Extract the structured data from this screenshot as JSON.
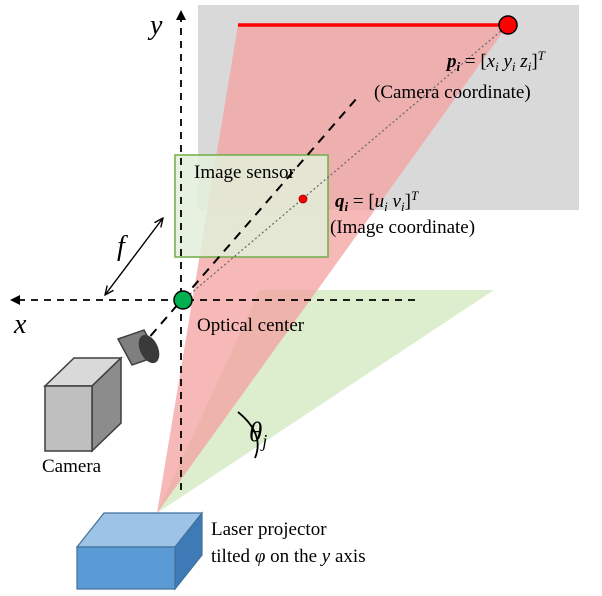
{
  "axes": {
    "x_label": "x",
    "y_label": "y"
  },
  "labels": {
    "focal_length": "f",
    "image_sensor": "Image sensor",
    "optical_center": "Optical center",
    "camera": "Camera",
    "angle": "θ",
    "angle_sub": "j",
    "laser_line1": "Laser projector",
    "laser_line2_pre": "tilted ",
    "laser_line2_phi": "φ",
    "laser_line2_mid": " on the ",
    "laser_line2_axis": "y",
    "laser_line2_post": " axis"
  },
  "point_p": {
    "symbol": "p",
    "sub": "i",
    "equals": " = [",
    "x": "x",
    "x_sub": "i",
    "y": "y",
    "y_sub": "i",
    "z": "z",
    "z_sub": "i",
    "close": "]",
    "sup": "T",
    "caption": "(Camera coordinate)"
  },
  "point_q": {
    "symbol": "q",
    "sub": "i",
    "equals": " = [",
    "u": "u",
    "u_sub": "i",
    "v": "v",
    "v_sub": "i",
    "close": "]",
    "sup": "T",
    "caption": "(Image coordinate)"
  },
  "colors": {
    "gray_plane": "#d9d9d9",
    "laser_red_plane": "#f4a9a9",
    "laser_green_plane": "#d8ecc9",
    "sensor_fill": "#e2efd9",
    "sensor_stroke": "#70ad47",
    "laser_line": "#ff0000",
    "point_red": "#ff0000",
    "optical_center": "#00b050",
    "projector": "#5b9bd5"
  }
}
